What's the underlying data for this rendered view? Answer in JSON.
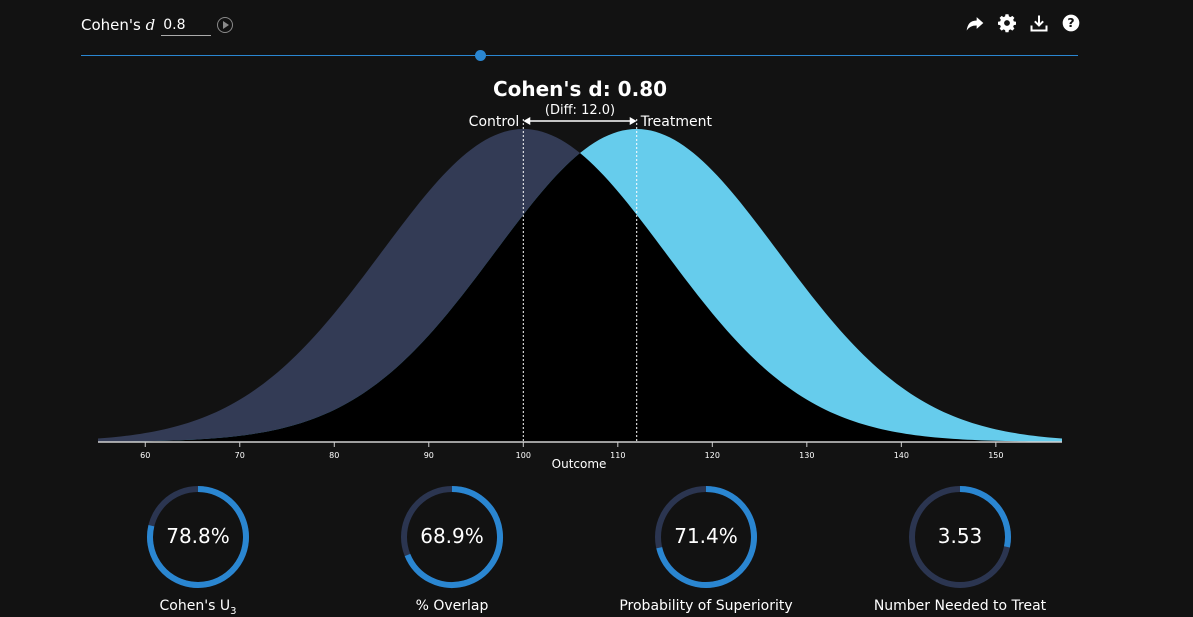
{
  "control": {
    "label_prefix": "Cohen's",
    "label_var": "d",
    "value": "0.8"
  },
  "slider": {
    "value": 0.8
  },
  "toolbar": [
    "share-icon",
    "settings-icon",
    "download-icon",
    "help-icon"
  ],
  "colors": {
    "control": "#333B55",
    "treatment": "#66CCEC",
    "overlap": "#000000",
    "accent": "#2A86D1",
    "gauge_track": "#2B3550"
  },
  "chart_data": {
    "type": "area",
    "title": "Cohen's d: 0.80",
    "subtitle": "(Diff: 12.0)",
    "xlabel": "Outcome",
    "xlim": [
      55,
      157
    ],
    "x_ticks": [
      "60",
      "70",
      "80",
      "90",
      "100",
      "110",
      "120",
      "130",
      "140",
      "150"
    ],
    "series": [
      {
        "name": "Control",
        "mean": 100,
        "sd": 15
      },
      {
        "name": "Treatment",
        "mean": 112,
        "sd": 15
      }
    ]
  },
  "gauges": [
    {
      "label": "Cohen's U",
      "label_sub": "3",
      "value_text": "78.8%",
      "fraction": 0.788
    },
    {
      "label": "% Overlap",
      "value_text": "68.9%",
      "fraction": 0.689
    },
    {
      "label": "Probability of Superiority",
      "value_text": "71.4%",
      "fraction": 0.714
    },
    {
      "label": "Number Needed to Treat",
      "value_text": "3.53",
      "fraction": 0.283
    }
  ]
}
